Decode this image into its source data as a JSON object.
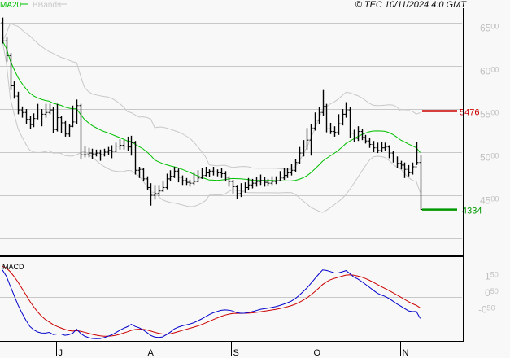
{
  "chart_data": {
    "type": "ohlc",
    "copyright": "© TEC 10/11/2024 4:0 GMT",
    "legend": [
      {
        "label": "MA20",
        "color": "#00c000"
      },
      {
        "label": "BBands",
        "color": "#c8c8c8"
      }
    ],
    "price_axis": {
      "ticks": [
        {
          "value": 6500,
          "major": "65",
          "minor": "00"
        },
        {
          "value": 6000,
          "major": "60",
          "minor": "00"
        },
        {
          "value": 5500,
          "major": "55",
          "minor": "00"
        },
        {
          "value": 5000,
          "major": "50",
          "minor": "00"
        },
        {
          "value": 4500,
          "major": "45",
          "minor": "00"
        },
        {
          "value": 4000,
          "major": "",
          "minor": ""
        }
      ],
      "ylim": [
        3900,
        6850
      ]
    },
    "levels": [
      {
        "label": "5476",
        "value": 5476,
        "color": "#cc0000"
      },
      {
        "label": "4334",
        "value": 4334,
        "color": "#009900"
      }
    ],
    "macd": {
      "label": "MACD",
      "ticks": [
        {
          "value": 150,
          "major": "1",
          "minor": "50"
        },
        {
          "value": 50,
          "major": "0",
          "minor": "50"
        },
        {
          "value": -50,
          "major": "-0",
          "minor": "50"
        }
      ],
      "macd_color": "#0000cc",
      "signal_color": "#cc0000"
    },
    "x_ticks": [
      {
        "label": "J",
        "bar": 13.75
      },
      {
        "label": "A",
        "bar": 36.7
      },
      {
        "label": "S",
        "bar": 58.5
      },
      {
        "label": "O",
        "bar": 79.2
      },
      {
        "label": "N",
        "bar": 101.9
      }
    ],
    "open": [
      6500,
      6290,
      6120,
      5770,
      5650,
      5490,
      5460,
      5380,
      5320,
      5390,
      5420,
      5440,
      5460,
      5490,
      5260,
      5400,
      5340,
      5210,
      5300,
      5350,
      5540,
      4970,
      4970,
      4990,
      4980,
      4990,
      4970,
      5000,
      5020,
      5010,
      5070,
      5080,
      5070,
      5060,
      5110,
      4790,
      4800,
      4690,
      4590,
      4500,
      4520,
      4550,
      4590,
      4690,
      4720,
      4780,
      4710,
      4670,
      4650,
      4640,
      4660,
      4700,
      4730,
      4760,
      4780,
      4770,
      4760,
      4750,
      4710,
      4660,
      4600,
      4520,
      4560,
      4590,
      4620,
      4640,
      4660,
      4670,
      4650,
      4640,
      4660,
      4670,
      4700,
      4730,
      4760,
      4790,
      4880,
      4990,
      5070,
      5140,
      5280,
      5370,
      5460,
      5530,
      5270,
      5240,
      5230,
      5330,
      5440,
      5490,
      5220,
      5160,
      5240,
      5170,
      5130,
      5090,
      5050,
      5020,
      5050,
      5060,
      4990,
      4920,
      4870,
      4850,
      4800,
      4760,
      4830,
      4880
    ],
    "high": [
      6560,
      6330,
      6150,
      5820,
      5700,
      5530,
      5500,
      5420,
      5450,
      5560,
      5500,
      5560,
      5560,
      5520,
      5560,
      5420,
      5360,
      5330,
      5540,
      5610,
      5560,
      5070,
      5050,
      5040,
      5030,
      5030,
      5040,
      5060,
      5080,
      5110,
      5150,
      5140,
      5180,
      5190,
      5130,
      4830,
      4820,
      4720,
      4640,
      4620,
      4620,
      4660,
      4750,
      4790,
      4830,
      4810,
      4730,
      4700,
      4680,
      4760,
      4790,
      4820,
      4830,
      4800,
      4830,
      4800,
      4820,
      4780,
      4720,
      4680,
      4620,
      4640,
      4650,
      4700,
      4690,
      4710,
      4740,
      4710,
      4690,
      4720,
      4720,
      4780,
      4820,
      4820,
      4860,
      4920,
      5060,
      5140,
      5280,
      5330,
      5460,
      5520,
      5720,
      5560,
      5340,
      5300,
      5440,
      5500,
      5580,
      5520,
      5260,
      5300,
      5270,
      5200,
      5160,
      5130,
      5110,
      5120,
      5110,
      5080,
      5010,
      4950,
      4900,
      4880,
      4850,
      4880,
      5120,
      4970
    ],
    "low": [
      6260,
      6050,
      5720,
      5620,
      5440,
      5400,
      5330,
      5270,
      5290,
      5380,
      5300,
      5400,
      5440,
      5220,
      5240,
      5220,
      5180,
      5180,
      5290,
      5330,
      4920,
      4940,
      4940,
      4920,
      4950,
      4900,
      4950,
      4970,
      4930,
      5000,
      5030,
      5030,
      5010,
      4960,
      4740,
      4700,
      4660,
      4560,
      4380,
      4450,
      4490,
      4540,
      4570,
      4660,
      4700,
      4650,
      4620,
      4620,
      4600,
      4620,
      4650,
      4690,
      4720,
      4710,
      4730,
      4720,
      4700,
      4660,
      4600,
      4520,
      4460,
      4480,
      4530,
      4560,
      4580,
      4600,
      4620,
      4600,
      4610,
      4620,
      4630,
      4660,
      4680,
      4700,
      4730,
      4770,
      4860,
      4950,
      5030,
      4960,
      5250,
      5330,
      5420,
      5230,
      5210,
      5180,
      5200,
      5310,
      5400,
      5170,
      5120,
      5130,
      5140,
      5100,
      5050,
      5000,
      4990,
      5000,
      5010,
      4930,
      4880,
      4820,
      4800,
      4700,
      4720,
      4740,
      4850,
      4330
    ],
    "close": [
      6290,
      6120,
      5770,
      5650,
      5490,
      5460,
      5380,
      5320,
      5390,
      5420,
      5440,
      5460,
      5490,
      5260,
      5400,
      5340,
      5210,
      5300,
      5350,
      5540,
      4970,
      4970,
      4990,
      4980,
      4990,
      4970,
      5000,
      5020,
      5010,
      5070,
      5080,
      5070,
      5060,
      5110,
      4790,
      4800,
      4690,
      4590,
      4500,
      4520,
      4550,
      4590,
      4690,
      4720,
      4780,
      4710,
      4670,
      4650,
      4640,
      4660,
      4700,
      4730,
      4760,
      4780,
      4770,
      4760,
      4750,
      4710,
      4660,
      4600,
      4520,
      4560,
      4590,
      4620,
      4640,
      4660,
      4670,
      4650,
      4640,
      4660,
      4670,
      4700,
      4730,
      4760,
      4790,
      4880,
      4990,
      5070,
      5140,
      5280,
      5370,
      5460,
      5530,
      5270,
      5240,
      5230,
      5330,
      5440,
      5490,
      5220,
      5160,
      5240,
      5170,
      5130,
      5090,
      5050,
      5020,
      5050,
      5060,
      4990,
      4920,
      4870,
      4850,
      4800,
      4760,
      4830,
      4880,
      4334
    ]
  }
}
